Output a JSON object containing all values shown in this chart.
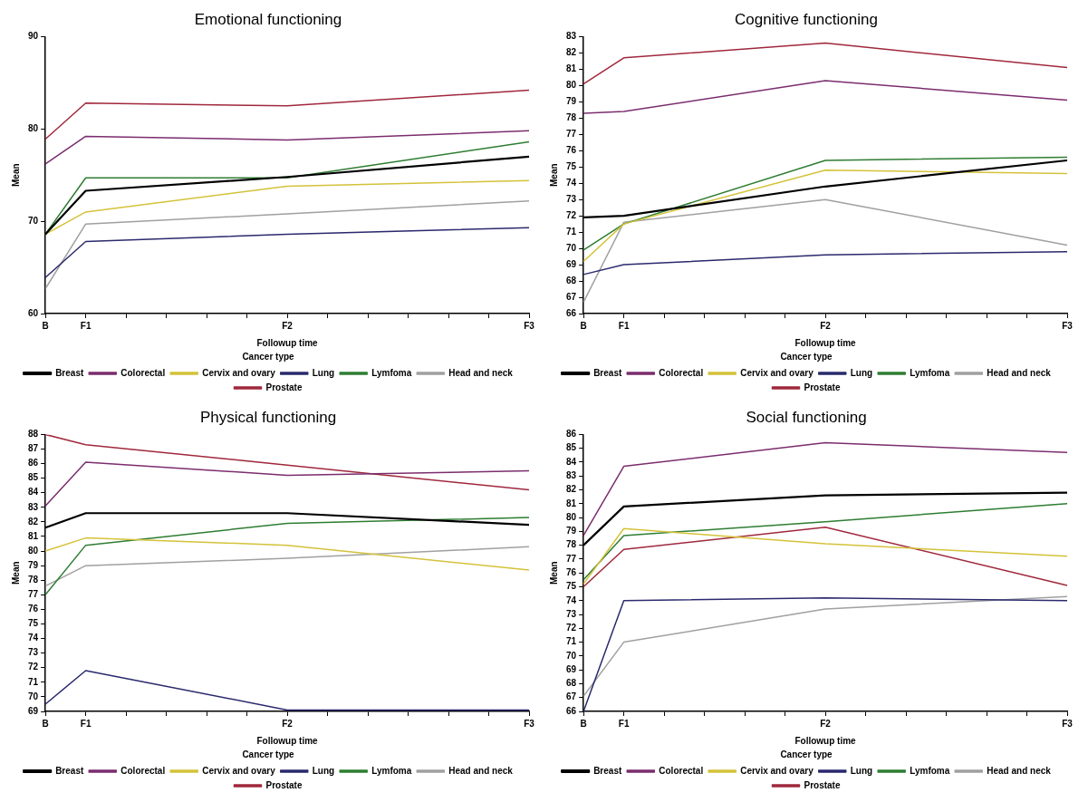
{
  "chart_data": [
    {
      "type": "line",
      "title": "Emotional functioning",
      "xlabel": "Followup time",
      "ylabel": "Mean",
      "legend_title": "Cancer type",
      "legend": "bottom",
      "grid": false,
      "marker": "none",
      "categories": [
        "B",
        "F1",
        null,
        null,
        null,
        null,
        "F2",
        null,
        null,
        null,
        null,
        null,
        "F3"
      ],
      "ylim": [
        60,
        90
      ],
      "yticks": [
        60,
        70,
        80,
        90
      ],
      "series": [
        {
          "name": "Breast",
          "color": "#000000",
          "values": [
            68.6,
            73.3,
            null,
            null,
            null,
            null,
            74.8,
            null,
            null,
            null,
            null,
            null,
            77.0
          ]
        },
        {
          "name": "Colorectal",
          "color": "#7b2d6e",
          "values": [
            76.2,
            79.2,
            null,
            null,
            null,
            null,
            78.8,
            null,
            null,
            null,
            null,
            null,
            79.8
          ]
        },
        {
          "name": "Cervix and ovary",
          "color": "#d4c23a",
          "values": [
            68.6,
            71.0,
            null,
            null,
            null,
            null,
            73.8,
            null,
            null,
            null,
            null,
            null,
            74.4
          ]
        },
        {
          "name": "Lung",
          "color": "#2a2a6e",
          "values": [
            63.9,
            67.8,
            null,
            null,
            null,
            null,
            68.6,
            null,
            null,
            null,
            null,
            null,
            69.3
          ]
        },
        {
          "name": "Lymfoma",
          "color": "#2e7d32",
          "values": [
            68.6,
            74.7,
            null,
            null,
            null,
            null,
            74.7,
            null,
            null,
            null,
            null,
            null,
            78.6
          ]
        },
        {
          "name": "Head and neck",
          "color": "#a0a0a0",
          "values": [
            62.7,
            69.7,
            null,
            null,
            null,
            null,
            70.8,
            null,
            null,
            null,
            null,
            null,
            72.2
          ]
        },
        {
          "name": "Prostate",
          "color": "#a0283c",
          "values": [
            78.9,
            82.8,
            null,
            null,
            null,
            null,
            82.5,
            null,
            null,
            null,
            null,
            null,
            84.2
          ]
        }
      ]
    },
    {
      "type": "line",
      "title": "Cognitive functioning",
      "xlabel": "Followup time",
      "ylabel": "Mean",
      "legend_title": "Cancer type",
      "legend": "bottom",
      "grid": false,
      "marker": "none",
      "categories": [
        "B",
        "F1",
        null,
        null,
        null,
        null,
        "F2",
        null,
        null,
        null,
        null,
        null,
        "F3"
      ],
      "ylim": [
        66,
        83
      ],
      "yticks": [
        66,
        67,
        68,
        69,
        70,
        71,
        72,
        73,
        74,
        75,
        76,
        77,
        78,
        79,
        80,
        81,
        82,
        83
      ],
      "series": [
        {
          "name": "Breast",
          "color": "#000000",
          "values": [
            71.9,
            72.0,
            null,
            null,
            null,
            null,
            73.8,
            null,
            null,
            null,
            null,
            null,
            75.4
          ]
        },
        {
          "name": "Colorectal",
          "color": "#7b2d6e",
          "values": [
            78.3,
            78.4,
            null,
            null,
            null,
            null,
            80.3,
            null,
            null,
            null,
            null,
            null,
            79.1
          ]
        },
        {
          "name": "Cervix and ovary",
          "color": "#d4c23a",
          "values": [
            69.2,
            71.5,
            null,
            null,
            null,
            null,
            74.8,
            null,
            null,
            null,
            null,
            null,
            74.6
          ]
        },
        {
          "name": "Lung",
          "color": "#2a2a6e",
          "values": [
            68.4,
            69.0,
            null,
            null,
            null,
            null,
            69.6,
            null,
            null,
            null,
            null,
            null,
            69.8
          ]
        },
        {
          "name": "Lymfoma",
          "color": "#2e7d32",
          "values": [
            69.9,
            71.5,
            null,
            null,
            null,
            null,
            75.4,
            null,
            null,
            null,
            null,
            null,
            75.6
          ]
        },
        {
          "name": "Head and neck",
          "color": "#a0a0a0",
          "values": [
            66.7,
            71.6,
            null,
            null,
            null,
            null,
            73.0,
            null,
            null,
            null,
            null,
            null,
            70.2
          ]
        },
        {
          "name": "Prostate",
          "color": "#a0283c",
          "values": [
            80.1,
            81.7,
            null,
            null,
            null,
            null,
            82.6,
            null,
            null,
            null,
            null,
            null,
            81.1
          ]
        }
      ]
    },
    {
      "type": "line",
      "title": "Physical functioning",
      "xlabel": "Followup time",
      "ylabel": "Mean",
      "legend_title": "Cancer type",
      "legend": "bottom",
      "grid": false,
      "marker": "none",
      "categories": [
        "B",
        "F1",
        null,
        null,
        null,
        null,
        "F2",
        null,
        null,
        null,
        null,
        null,
        "F3"
      ],
      "ylim": [
        69,
        88
      ],
      "yticks": [
        69,
        70,
        71,
        72,
        73,
        74,
        75,
        76,
        77,
        78,
        79,
        80,
        81,
        82,
        83,
        84,
        85,
        86,
        87,
        88
      ],
      "series": [
        {
          "name": "Breast",
          "color": "#000000",
          "values": [
            81.6,
            82.6,
            null,
            null,
            null,
            null,
            82.6,
            null,
            null,
            null,
            null,
            null,
            81.8
          ]
        },
        {
          "name": "Colorectal",
          "color": "#7b2d6e",
          "values": [
            83.1,
            86.1,
            null,
            null,
            null,
            null,
            85.2,
            null,
            null,
            null,
            null,
            null,
            85.5
          ]
        },
        {
          "name": "Cervix and ovary",
          "color": "#d4c23a",
          "values": [
            80.0,
            80.9,
            null,
            null,
            null,
            null,
            80.4,
            null,
            null,
            null,
            null,
            null,
            78.7
          ]
        },
        {
          "name": "Lung",
          "color": "#2a2a6e",
          "values": [
            69.5,
            71.8,
            null,
            null,
            null,
            null,
            69.1,
            null,
            null,
            null,
            null,
            null,
            69.1
          ]
        },
        {
          "name": "Lymfoma",
          "color": "#2e7d32",
          "values": [
            77.0,
            80.4,
            null,
            null,
            null,
            null,
            81.9,
            null,
            null,
            null,
            null,
            null,
            82.3
          ]
        },
        {
          "name": "Head and neck",
          "color": "#a0a0a0",
          "values": [
            77.6,
            79.0,
            null,
            null,
            null,
            null,
            79.5,
            null,
            null,
            null,
            null,
            null,
            80.3
          ]
        },
        {
          "name": "Prostate",
          "color": "#a0283c",
          "values": [
            88.0,
            87.3,
            null,
            null,
            null,
            null,
            85.9,
            null,
            null,
            null,
            null,
            null,
            84.2
          ]
        }
      ]
    },
    {
      "type": "line",
      "title": "Social functioning",
      "xlabel": "Followup time",
      "ylabel": "Mean",
      "legend_title": "Cancer type",
      "legend": "bottom",
      "grid": false,
      "marker": "none",
      "categories": [
        "B",
        "F1",
        null,
        null,
        null,
        null,
        "F2",
        null,
        null,
        null,
        null,
        null,
        "F3"
      ],
      "ylim": [
        66,
        86
      ],
      "yticks": [
        66,
        67,
        68,
        69,
        70,
        71,
        72,
        73,
        74,
        75,
        76,
        77,
        78,
        79,
        80,
        81,
        82,
        83,
        84,
        85,
        86
      ],
      "series": [
        {
          "name": "Breast",
          "color": "#000000",
          "values": [
            78.0,
            80.8,
            null,
            null,
            null,
            null,
            81.6,
            null,
            null,
            null,
            null,
            null,
            81.8
          ]
        },
        {
          "name": "Colorectal",
          "color": "#7b2d6e",
          "values": [
            78.7,
            83.7,
            null,
            null,
            null,
            null,
            85.4,
            null,
            null,
            null,
            null,
            null,
            84.7
          ]
        },
        {
          "name": "Cervix and ovary",
          "color": "#d4c23a",
          "values": [
            75.2,
            79.2,
            null,
            null,
            null,
            null,
            78.1,
            null,
            null,
            null,
            null,
            null,
            77.2
          ]
        },
        {
          "name": "Lung",
          "color": "#2a2a6e",
          "values": [
            66.0,
            74.0,
            null,
            null,
            null,
            null,
            74.2,
            null,
            null,
            null,
            null,
            null,
            74.0
          ]
        },
        {
          "name": "Lymfoma",
          "color": "#2e7d32",
          "values": [
            75.5,
            78.7,
            null,
            null,
            null,
            null,
            79.7,
            null,
            null,
            null,
            null,
            null,
            81.0
          ]
        },
        {
          "name": "Head and neck",
          "color": "#a0a0a0",
          "values": [
            67.1,
            71.0,
            null,
            null,
            null,
            null,
            73.4,
            null,
            null,
            null,
            null,
            null,
            74.3
          ]
        },
        {
          "name": "Prostate",
          "color": "#a0283c",
          "values": [
            75.0,
            77.7,
            null,
            null,
            null,
            null,
            79.3,
            null,
            null,
            null,
            null,
            null,
            75.1
          ]
        }
      ]
    }
  ]
}
